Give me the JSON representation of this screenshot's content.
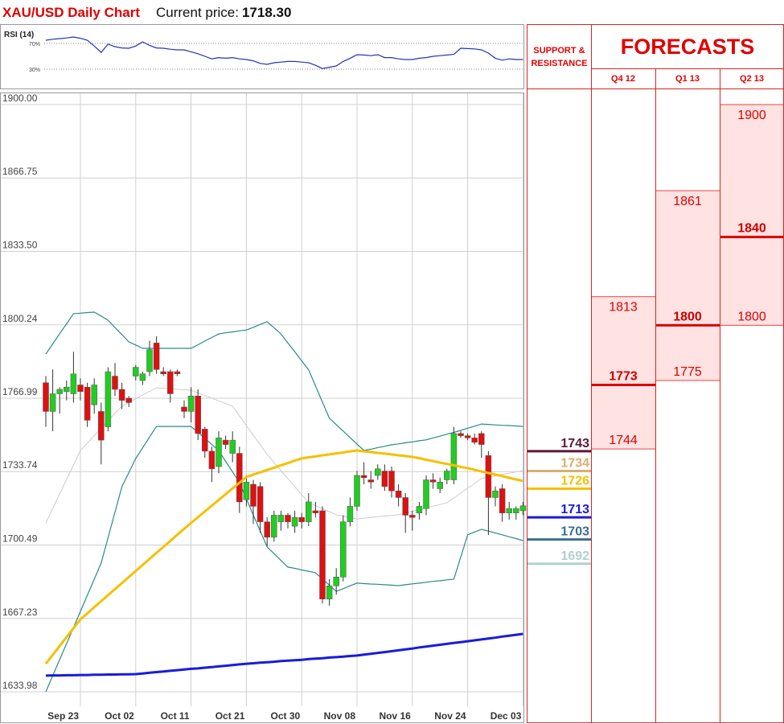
{
  "header": {
    "title": "XAU/USD Daily Chart",
    "current_price_label": "Current price:",
    "current_price": "1718.30"
  },
  "chart_data": [
    {
      "type": "candlestick",
      "categories": [
        null,
        null,
        null,
        null,
        null,
        "Sep 23",
        null,
        null,
        null,
        null,
        null,
        null,
        null,
        "Oct 02",
        null,
        null,
        null,
        null,
        null,
        null,
        null,
        "Oct 11",
        null,
        null,
        null,
        null,
        null,
        null,
        null,
        "Oct 21",
        null,
        null,
        null,
        null,
        null,
        null,
        null,
        "Oct 30",
        null,
        null,
        null,
        null,
        null,
        null,
        null,
        "Nov 08",
        null,
        null,
        null,
        null,
        null,
        null,
        null,
        "Nov 16",
        null,
        null,
        null,
        null,
        null,
        null,
        null,
        "Nov 24",
        null,
        null,
        null,
        null,
        null,
        null,
        null,
        "Dec 03"
      ],
      "open": [
        1774,
        1761,
        1769,
        1770,
        1769,
        1773,
        1772,
        1764,
        1761,
        1754,
        1777,
        1771,
        1767,
        1777,
        1775,
        1779,
        1792,
        1779,
        1779,
        1779,
        1763,
        1761,
        1768,
        1753,
        1743,
        1736,
        1748,
        1742,
        1742,
        1721,
        1728,
        1727,
        1711,
        1704,
        1711,
        1714,
        1709,
        1713,
        1711,
        1716,
        1716,
        1676,
        1682,
        1686,
        1711,
        1718,
        1732,
        1730,
        1732,
        1734,
        1734,
        1725,
        1722,
        1714,
        1715,
        1717,
        1730,
        1726,
        1730,
        1730,
        1751,
        1750,
        1749,
        1751,
        1741,
        1722,
        1726,
        1715,
        1715,
        1716
      ],
      "high": [
        1777,
        1780,
        1772,
        1775,
        1788,
        1776,
        1774,
        1776,
        1765,
        1781,
        1783,
        1774,
        1768,
        1782,
        1779,
        1793,
        1795,
        1781,
        1780,
        1780,
        1766,
        1772,
        1771,
        1754,
        1745,
        1752,
        1750,
        1752,
        1745,
        1732,
        1730,
        1729,
        1713,
        1716,
        1716,
        1715,
        1716,
        1715,
        1724,
        1720,
        1718,
        1685,
        1690,
        1714,
        1722,
        1734,
        1738,
        1734,
        1737,
        1737,
        1736,
        1728,
        1724,
        1716,
        1720,
        1732,
        1733,
        1731,
        1735,
        1754,
        1752,
        1751,
        1751,
        1752,
        1743,
        1727,
        1728,
        1720,
        1718,
        1720
      ],
      "low": [
        1754,
        1752,
        1760,
        1766,
        1765,
        1766,
        1754,
        1760,
        1737,
        1752,
        1768,
        1762,
        1763,
        1775,
        1773,
        1777,
        1778,
        1777,
        1765,
        1777,
        1758,
        1756,
        1748,
        1740,
        1729,
        1733,
        1744,
        1738,
        1715,
        1718,
        1710,
        1706,
        1700,
        1702,
        1707,
        1708,
        1706,
        1708,
        1709,
        1713,
        1674,
        1673,
        1678,
        1684,
        1709,
        1716,
        1728,
        1726,
        1730,
        1725,
        1722,
        1718,
        1706,
        1707,
        1712,
        1714,
        1726,
        1724,
        1728,
        1728,
        1749,
        1748,
        1746,
        1740,
        1705,
        1718,
        1711,
        1712,
        1712,
        1714
      ],
      "close": [
        1761,
        1769,
        1771,
        1772,
        1778,
        1770,
        1757,
        1773,
        1748,
        1779,
        1771,
        1766,
        1765,
        1781,
        1778,
        1789,
        1780,
        1778,
        1769,
        1778,
        1761,
        1768,
        1751,
        1743,
        1735,
        1749,
        1746,
        1748,
        1720,
        1729,
        1718,
        1711,
        1704,
        1714,
        1714,
        1711,
        1713,
        1711,
        1720,
        1715,
        1676,
        1682,
        1686,
        1711,
        1718,
        1732,
        1731,
        1729,
        1735,
        1727,
        1725,
        1722,
        1714,
        1713,
        1718,
        1730,
        1729,
        1729,
        1734,
        1751,
        1750,
        1749,
        1747,
        1746,
        1722,
        1725,
        1715,
        1717,
        1717,
        1718.3
      ],
      "up_color": "#22cc22",
      "down_color": "#dd1111",
      "overlays": [
        {
          "color": "#cccccc",
          "values": [
            1710.5,
            1717.1,
            1723.6,
            1730.2,
            1736.7,
            1743.3,
            1746.7,
            1750.0,
            1753.4,
            1756.7,
            1760.1,
            1763.4,
            1765.1,
            1766.7,
            1768.4,
            1770.0,
            1771.7,
            1771.5,
            1771.3,
            1771.0,
            1770.8,
            1770.6,
            1769.4,
            1768.2,
            1767.0,
            1765.8,
            1764.6,
            1763.4,
            1759.0,
            1754.6,
            1750.3,
            1745.9,
            1741.5,
            1737.9,
            1734.2,
            1730.6,
            1726.9,
            1723.3,
            1719.6,
            1718.3,
            1716.9,
            1715.6,
            1714.2,
            1713.6,
            1712.9,
            1712.3,
            1712.6,
            1713.0,
            1713.3,
            1713.6,
            1713.9,
            1714.2,
            1715.0,
            1715.8,
            1716.5,
            1717.3,
            1718.1,
            1718.8,
            1719.6,
            1721.8,
            1724.0,
            1726.2,
            1728.4,
            1730.6,
            1731.2,
            1731.8,
            1732.4,
            1733.0,
            1733.6,
            1734.2
          ]
        },
        {
          "color": "#2a8a8a",
          "values": [
            1787.0,
            1791.6,
            1796.2,
            1800.7,
            1805.3,
            1805.5,
            1805.8,
            1806.0,
            1804.2,
            1802.3,
            1799.0,
            1795.8,
            1792.5,
            1791.1,
            1789.6,
            1789.6,
            1789.6,
            1789.6,
            1789.6,
            1789.6,
            1789.6,
            1789.6,
            1791.2,
            1792.9,
            1794.5,
            1796.1,
            1796.6,
            1797.0,
            1797.5,
            1797.9,
            1799.1,
            1800.4,
            1801.6,
            1798.9,
            1796.1,
            1792.0,
            1788.0,
            1783.9,
            1779.8,
            1772.5,
            1765.2,
            1757.9,
            1755.0,
            1752.1,
            1749.1,
            1746.2,
            1743.3,
            1743.9,
            1744.6,
            1745.2,
            1745.9,
            1746.3,
            1746.8,
            1747.2,
            1747.7,
            1748.1,
            1749.0,
            1749.8,
            1750.7,
            1751.5,
            1752.4,
            1753.4,
            1754.3,
            1755.3,
            1755.1,
            1754.9,
            1754.7,
            1754.6,
            1754.4,
            1754.2
          ]
        },
        {
          "color": "#2a8a8a",
          "values": [
            1634.0,
            1641.3,
            1648.6,
            1655.8,
            1663.1,
            1670.4,
            1677.7,
            1685.0,
            1692.3,
            1703.8,
            1715.4,
            1726.9,
            1733.3,
            1739.7,
            1744.5,
            1749.4,
            1754.2,
            1754.2,
            1754.2,
            1754.2,
            1754.2,
            1754.2,
            1751.5,
            1748.8,
            1746.0,
            1743.3,
            1738.4,
            1733.6,
            1728.7,
            1721.4,
            1714.1,
            1706.9,
            1699.6,
            1696.6,
            1693.5,
            1690.5,
            1689.9,
            1689.2,
            1688.6,
            1687.9,
            1685.1,
            1682.3,
            1679.5,
            1680.7,
            1682.0,
            1683.2,
            1683.0,
            1682.8,
            1682.7,
            1682.5,
            1682.3,
            1682.1,
            1682.5,
            1682.9,
            1683.2,
            1683.6,
            1684.0,
            1684.3,
            1684.7,
            1685.0,
            1695.1,
            1705.1,
            1706.4,
            1707.6,
            1706.8,
            1705.9,
            1705.1,
            1704.2,
            1703.4,
            1702.5
          ]
        },
        {
          "color": "#f5c000",
          "values": [
            1646.7,
            1650.7,
            1654.7,
            1658.8,
            1662.8,
            1666.8,
            1669.5,
            1672.3,
            1675.0,
            1677.8,
            1680.5,
            1683.2,
            1686.0,
            1688.7,
            1691.4,
            1694.2,
            1696.9,
            1699.6,
            1702.3,
            1705.1,
            1707.8,
            1710.5,
            1713.1,
            1715.7,
            1718.3,
            1720.9,
            1723.5,
            1726.1,
            1728.7,
            1731.3,
            1732.4,
            1733.4,
            1734.5,
            1735.5,
            1736.6,
            1737.6,
            1738.7,
            1739.7,
            1740.2,
            1740.6,
            1741.1,
            1741.5,
            1742.0,
            1742.4,
            1742.9,
            1743.3,
            1742.9,
            1742.6,
            1742.2,
            1741.9,
            1741.5,
            1741.1,
            1740.8,
            1740.4,
            1739.8,
            1739.1,
            1738.5,
            1737.8,
            1737.2,
            1736.6,
            1735.9,
            1735.3,
            1734.6,
            1733.8,
            1733.1,
            1732.4,
            1731.7,
            1730.9,
            1730.2,
            1729.5
          ]
        },
        {
          "color": "#1a1adc",
          "values": [
            1641.3,
            1641.4,
            1641.4,
            1641.5,
            1641.5,
            1641.6,
            1641.6,
            1641.7,
            1641.7,
            1641.8,
            1641.8,
            1641.9,
            1641.9,
            1642.0,
            1642.3,
            1642.6,
            1642.9,
            1643.2,
            1643.5,
            1643.8,
            1644.1,
            1644.4,
            1644.6,
            1644.9,
            1645.2,
            1645.5,
            1645.8,
            1646.1,
            1646.4,
            1646.7,
            1646.9,
            1647.2,
            1647.4,
            1647.6,
            1647.9,
            1648.1,
            1648.3,
            1648.5,
            1648.8,
            1649.0,
            1649.2,
            1649.5,
            1649.7,
            1649.9,
            1650.2,
            1650.4,
            1650.8,
            1651.2,
            1651.6,
            1652.0,
            1652.4,
            1652.8,
            1653.2,
            1653.6,
            1654.1,
            1654.5,
            1654.9,
            1655.3,
            1655.7,
            1656.1,
            1656.5,
            1656.9,
            1657.3,
            1657.7,
            1658.1,
            1658.5,
            1659.0,
            1659.4,
            1659.8,
            1660.2
          ]
        }
      ],
      "ylim": [
        1633.98,
        1900
      ],
      "yticks": [
        {
          "value": 1900,
          "label": "1900.00"
        },
        1866.75,
        {
          "value": 1833.5,
          "label": "1833.50"
        },
        1800.24,
        1766.99,
        1733.74,
        1700.49,
        1667.23,
        1633.98
      ],
      "grid": true
    },
    {
      "type": "line",
      "title": "RSI (14)",
      "color": "#2233bb",
      "values": [
        75,
        76.5,
        77.5,
        78.5,
        80,
        78,
        75,
        66,
        56,
        69,
        65,
        63,
        62.5,
        66,
        72.5,
        67,
        63,
        62.5,
        61,
        60,
        60,
        57,
        54,
        50,
        46,
        48,
        47,
        48,
        46,
        45,
        43,
        39,
        37.5,
        40,
        41,
        42,
        42,
        41,
        40,
        36,
        31,
        33,
        35,
        42,
        47,
        52.5,
        52,
        51,
        52.5,
        48,
        48,
        46,
        45,
        45,
        47,
        48,
        50,
        51,
        52,
        53,
        62.5,
        62,
        61.5,
        60,
        55,
        47,
        44,
        46,
        45,
        45
      ],
      "ylim": [
        0,
        100
      ],
      "yticks": [
        {
          "value": 70,
          "label": "70%"
        },
        {
          "value": 30,
          "label": "30%"
        }
      ]
    }
  ],
  "support_resistance": {
    "title": "SUPPORT & RESISTANCE",
    "levels": [
      1743,
      1734,
      1726,
      1713,
      1703,
      1692
    ],
    "colors": [
      "#5a1a3a",
      "#d6b070",
      "#f5c000",
      "#1a1adc",
      "#3a7090",
      "#b0d0d0"
    ]
  },
  "forecasts": {
    "title": "FORECASTS",
    "quarters": [
      {
        "label": "Q4 12",
        "high": 1813,
        "mid": 1773,
        "low": 1744
      },
      {
        "label": "Q1 13",
        "high": 1861,
        "mid": 1800,
        "low": 1775
      },
      {
        "label": "Q2 13",
        "high": 1900,
        "mid": 1840,
        "low": 1800
      }
    ]
  }
}
